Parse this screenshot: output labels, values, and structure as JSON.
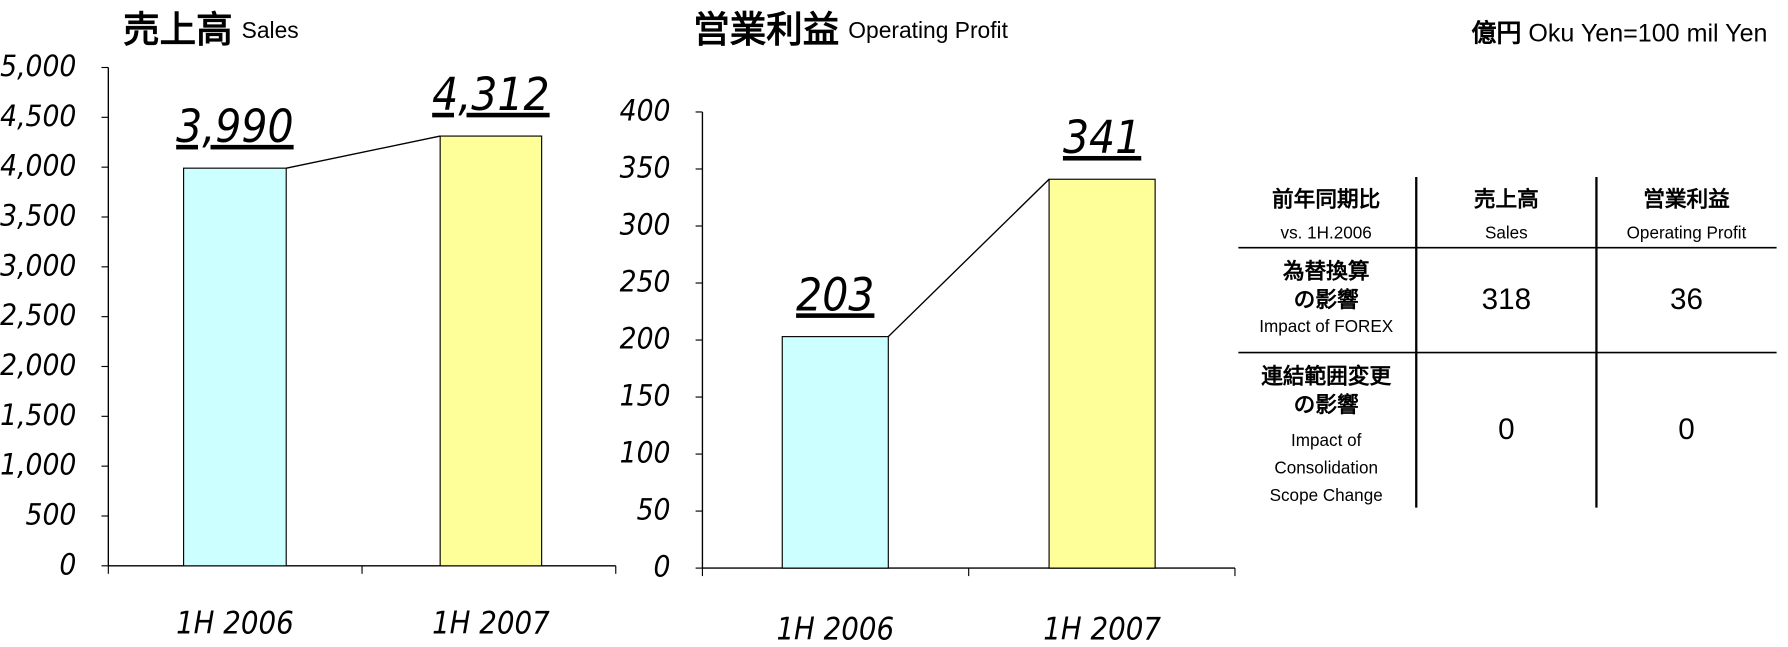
{
  "chart_data": [
    {
      "type": "bar",
      "title": "売上高",
      "subtitle": "Sales",
      "categories": [
        "1H 2006",
        "1H 2007"
      ],
      "values": [
        3990,
        4312
      ],
      "value_labels": [
        "3,990",
        "4,312"
      ],
      "colors": [
        "#ccffff",
        "#ffff99"
      ],
      "connector": true,
      "ylim": [
        0,
        5000
      ],
      "yticks": [
        0,
        500,
        {
          "value": 1000,
          "label": "1,000"
        },
        {
          "value": 1500,
          "label": "1,500"
        },
        {
          "value": 2000,
          "label": "2,000"
        },
        {
          "value": 2500,
          "label": "2,500"
        },
        {
          "value": 3000,
          "label": "3,000"
        },
        {
          "value": 3500,
          "label": "3,500"
        },
        {
          "value": 4000,
          "label": "4,000"
        },
        {
          "value": 4500,
          "label": "4,500"
        },
        {
          "value": 5000,
          "label": "5,000"
        }
      ]
    },
    {
      "type": "bar",
      "title": "営業利益",
      "subtitle": "Operating Profit",
      "categories": [
        "1H 2006",
        "1H 2007"
      ],
      "values": [
        203,
        341
      ],
      "colors": [
        "#ccffff",
        "#ffff99"
      ],
      "connector": true,
      "ylim": [
        0,
        400
      ],
      "yticks": [
        0,
        50,
        100,
        150,
        200,
        250,
        300,
        350,
        400
      ]
    }
  ],
  "unit": {
    "bold": "億円",
    "text": "Oku Yen=100 mil Yen"
  },
  "table": {
    "header": [
      [
        "前年同期比",
        "vs. 1H.2006"
      ],
      [
        "売上高",
        "Sales"
      ],
      [
        "営業利益",
        "Operating Profit"
      ]
    ],
    "rows": [
      {
        "label": [
          "為替換算",
          "の影響"
        ],
        "sub": [
          "Impact of FOREX"
        ],
        "values": [
          318,
          36
        ]
      },
      {
        "label": [
          "連結範囲変更",
          "の影響"
        ],
        "sub": [
          "Impact of",
          "Consolidation",
          "Scope Change"
        ],
        "values": [
          0,
          0
        ]
      }
    ]
  }
}
